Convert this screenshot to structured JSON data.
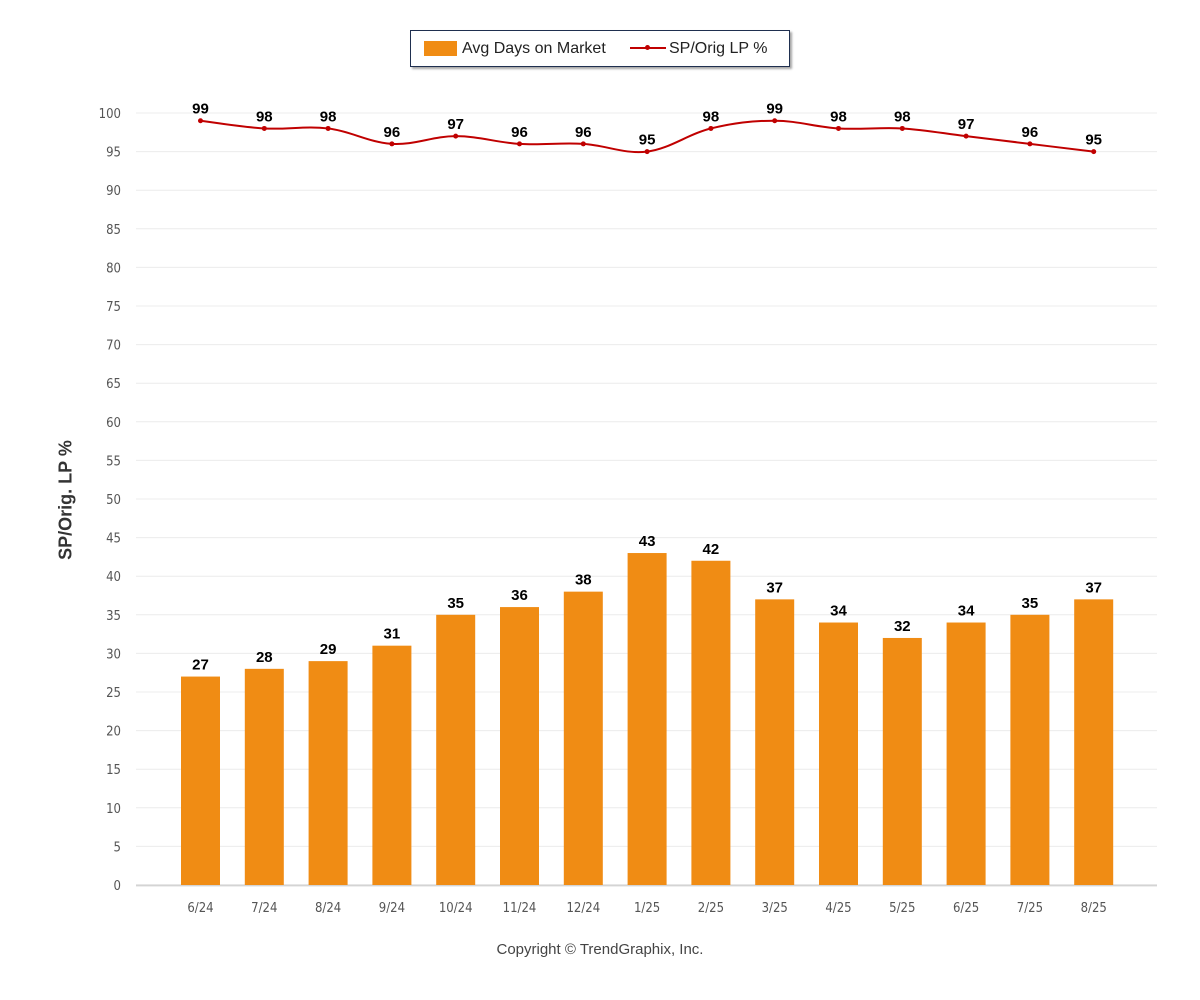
{
  "chart_data": {
    "type": "bar",
    "categories": [
      "6/24",
      "7/24",
      "8/24",
      "9/24",
      "10/24",
      "11/24",
      "12/24",
      "1/25",
      "2/25",
      "3/25",
      "4/25",
      "5/25",
      "6/25",
      "7/25",
      "8/25"
    ],
    "series": [
      {
        "name": "Avg Days on Market",
        "type": "bar",
        "color": "#f08c14",
        "values": [
          27,
          28,
          29,
          31,
          35,
          36,
          38,
          43,
          42,
          37,
          34,
          32,
          34,
          35,
          37
        ]
      },
      {
        "name": "SP/Orig LP %",
        "type": "line",
        "color": "#c00000",
        "values": [
          99,
          98,
          98,
          96,
          97,
          96,
          96,
          95,
          98,
          99,
          98,
          98,
          97,
          96,
          95
        ]
      }
    ],
    "ylabel": "SP/Orig. LP %",
    "ylim": [
      0,
      100
    ],
    "yticks": [
      0,
      5,
      10,
      15,
      20,
      25,
      30,
      35,
      40,
      45,
      50,
      55,
      60,
      65,
      70,
      75,
      80,
      85,
      90,
      95,
      100
    ],
    "grid": true,
    "legend": "top-center"
  },
  "legend": {
    "bar_label": "Avg Days on Market",
    "line_label": "SP/Orig LP %"
  },
  "copyright": "Copyright © TrendGraphix, Inc."
}
